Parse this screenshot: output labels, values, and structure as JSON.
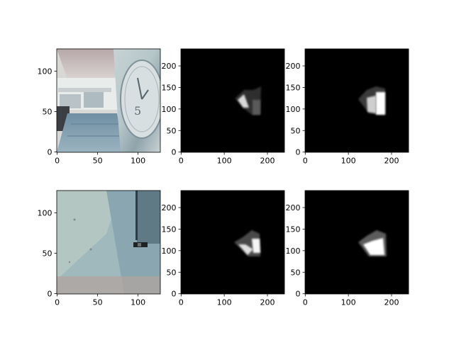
{
  "chart_data": [
    {
      "type": "image",
      "image_description": "photo of a bright indoor corridor with a large wall clock on the right showing the numeral 5",
      "clock_numeral": "5",
      "x_ticks": [
        0,
        50,
        100
      ],
      "y_ticks": [
        0,
        50,
        100
      ],
      "xlim": [
        -0.5,
        127.5
      ],
      "ylim": [
        127.5,
        -0.5
      ]
    },
    {
      "type": "heatmap",
      "colormap": "gray",
      "background": "#000000",
      "blob": {
        "x_range": [
          128,
          185
        ],
        "y_range": [
          90,
          150
        ],
        "shape": "thin wedge"
      },
      "x_ticks": [
        0,
        100,
        200
      ],
      "y_ticks": [
        0,
        50,
        100,
        150,
        200
      ],
      "xlim": [
        -0.5,
        239.5
      ],
      "ylim": [
        239.5,
        -0.5
      ]
    },
    {
      "type": "heatmap",
      "colormap": "gray",
      "background": "#000000",
      "blob": {
        "x_range": [
          125,
          188
        ],
        "y_range": [
          90,
          150
        ],
        "shape": "bright wedge"
      },
      "x_ticks": [
        0,
        100,
        200
      ],
      "y_ticks": [
        0,
        50,
        100,
        150,
        200
      ],
      "xlim": [
        -0.5,
        239.5
      ],
      "ylim": [
        239.5,
        -0.5
      ]
    },
    {
      "type": "image",
      "image_description": "close-up photo of a weathered pale blue wall with a vertical pipe and a small dark box",
      "x_ticks": [
        0,
        50,
        100
      ],
      "y_ticks": [
        0,
        50,
        100
      ],
      "xlim": [
        -0.5,
        127.5
      ],
      "ylim": [
        127.5,
        -0.5
      ]
    },
    {
      "type": "heatmap",
      "colormap": "gray",
      "background": "#000000",
      "blob": {
        "x_range": [
          125,
          185
        ],
        "y_range": [
          95,
          150
        ],
        "shape": "blob"
      },
      "x_ticks": [
        0,
        100,
        200
      ],
      "y_ticks": [
        0,
        50,
        100,
        150,
        200
      ],
      "xlim": [
        -0.5,
        239.5
      ],
      "ylim": [
        239.5,
        -0.5
      ]
    },
    {
      "type": "heatmap",
      "colormap": "gray",
      "background": "#000000",
      "blob": {
        "x_range": [
          125,
          188
        ],
        "y_range": [
          95,
          150
        ],
        "shape": "bright blob"
      },
      "x_ticks": [
        0,
        100,
        200
      ],
      "y_ticks": [
        0,
        50,
        100,
        150,
        200
      ],
      "xlim": [
        -0.5,
        239.5
      ],
      "ylim": [
        239.5,
        -0.5
      ]
    }
  ]
}
